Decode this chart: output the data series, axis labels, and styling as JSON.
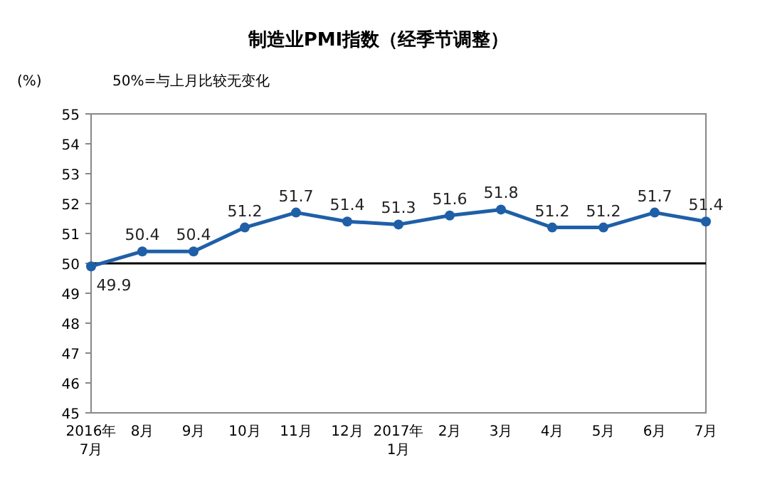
{
  "chart_data": {
    "type": "line",
    "title": "制造业PMI指数（经季节调整）",
    "ylabel": "(%)",
    "annotations": [
      "50%=与上月比较无变化"
    ],
    "categories": [
      "2016年\n7月",
      "8月",
      "9月",
      "10月",
      "11月",
      "12月",
      "2017年\n1月",
      "2月",
      "3月",
      "4月",
      "5月",
      "6月",
      "7月"
    ],
    "series": [
      {
        "color": "#1f5fa8",
        "values": [
          49.9,
          50.4,
          50.4,
          51.2,
          51.7,
          51.4,
          51.3,
          51.6,
          51.8,
          51.2,
          51.2,
          51.7,
          51.4
        ]
      }
    ],
    "ylim": [
      45,
      55
    ],
    "yticks": [
      45,
      46,
      47,
      48,
      49,
      50,
      51,
      52,
      53,
      54,
      55
    ],
    "ref_lines": [
      {
        "axis": "y",
        "value": 50,
        "color": "#000000"
      }
    ],
    "data_labels": true,
    "marker": "circle",
    "grid": false
  }
}
